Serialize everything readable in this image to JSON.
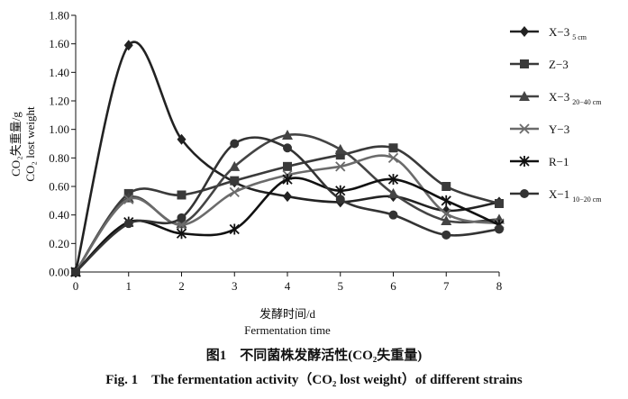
{
  "chart_data": {
    "type": "line",
    "x": [
      0,
      1,
      2,
      3,
      4,
      5,
      6,
      7,
      8
    ],
    "xticks": [
      "0",
      "1",
      "2",
      "3",
      "4",
      "5",
      "6",
      "7",
      "8"
    ],
    "yticks": [
      "0.00",
      "0.20",
      "0.40",
      "0.60",
      "0.80",
      "1.00",
      "1.20",
      "1.40",
      "1.60",
      "1.80"
    ],
    "xlim": [
      0,
      8
    ],
    "ylim": [
      0,
      1.8
    ],
    "xlabel_zh": "发酵时间/d",
    "xlabel_en": "Fermentation time",
    "ylabel_zh": "CO₂失重量/g",
    "ylabel_en": "CO₂ lost weight",
    "grid": false,
    "legend_position": "right",
    "series": [
      {
        "name": "X−3",
        "sub": "5 cm",
        "marker": "diamond",
        "color": "#222222",
        "values": [
          0.0,
          1.59,
          0.93,
          0.63,
          0.53,
          0.49,
          0.53,
          0.43,
          0.49
        ]
      },
      {
        "name": "Z−3",
        "sub": "",
        "marker": "square",
        "color": "#3a3a3a",
        "values": [
          0.0,
          0.55,
          0.54,
          0.64,
          0.74,
          0.82,
          0.87,
          0.6,
          0.48
        ]
      },
      {
        "name": "X−3",
        "sub": "20−40 cm",
        "marker": "triangle",
        "color": "#444444",
        "values": [
          0.0,
          0.52,
          0.34,
          0.74,
          0.96,
          0.86,
          0.55,
          0.36,
          0.37
        ]
      },
      {
        "name": "Y−3",
        "sub": "",
        "marker": "x",
        "color": "#6b6b6b",
        "values": [
          0.0,
          0.51,
          0.33,
          0.56,
          0.68,
          0.74,
          0.8,
          0.41,
          0.34
        ]
      },
      {
        "name": "R−1",
        "sub": "",
        "marker": "star",
        "color": "#111111",
        "values": [
          0.0,
          0.35,
          0.27,
          0.3,
          0.65,
          0.57,
          0.65,
          0.5,
          0.33
        ]
      },
      {
        "name": "X−1",
        "sub": "10−20 cm",
        "marker": "circle",
        "color": "#333333",
        "values": [
          0.0,
          0.34,
          0.38,
          0.9,
          0.87,
          0.51,
          0.4,
          0.26,
          0.3
        ]
      }
    ]
  },
  "caption": {
    "zh": "图1　不同菌株发酵活性(CO₂失重量)",
    "en": "Fig. 1　The fermentation activity（CO₂ lost weight）of different strains"
  }
}
